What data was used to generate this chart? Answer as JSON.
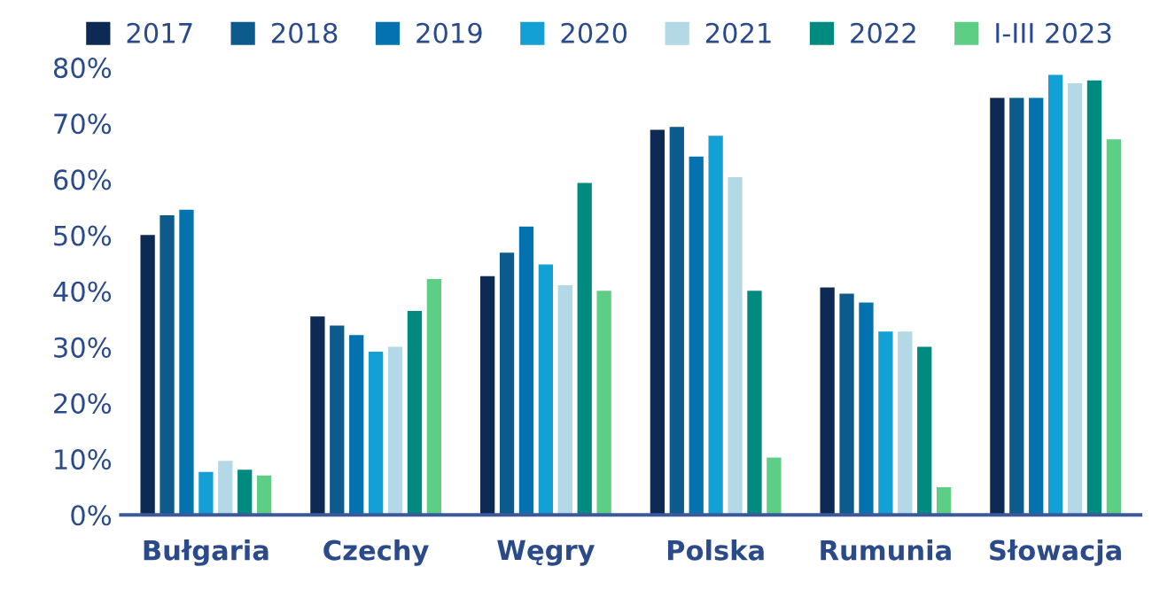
{
  "chart_data": {
    "type": "bar",
    "categories": [
      "Bułgaria",
      "Czechy",
      "Węgry",
      "Polska",
      "Rumunia",
      "Słowacja"
    ],
    "series": [
      {
        "name": "2017",
        "color": "#0c2a54",
        "values": [
          50.2,
          35.6,
          42.8,
          69.0,
          40.8,
          74.7
        ]
      },
      {
        "name": "2018",
        "color": "#0d5a8c",
        "values": [
          53.7,
          34.0,
          47.0,
          69.5,
          39.7,
          74.7
        ]
      },
      {
        "name": "2019",
        "color": "#0572b0",
        "values": [
          54.7,
          32.3,
          51.7,
          64.2,
          38.1,
          74.7
        ]
      },
      {
        "name": "2020",
        "color": "#13a0d4",
        "values": [
          7.8,
          29.3,
          44.9,
          67.9,
          32.9,
          78.8
        ]
      },
      {
        "name": "2021",
        "color": "#b3d8e6",
        "values": [
          9.8,
          30.2,
          41.2,
          60.5,
          32.9,
          77.3
        ]
      },
      {
        "name": "2022",
        "color": "#008a80",
        "values": [
          8.2,
          36.6,
          59.5,
          40.2,
          30.2,
          77.8
        ]
      },
      {
        "name": "I-III 2023",
        "color": "#5ccf85",
        "values": [
          7.2,
          42.3,
          40.2,
          10.4,
          5.1,
          67.3
        ]
      }
    ],
    "ylim": [
      0,
      80
    ],
    "yticks": [
      {
        "value": 0,
        "label": "0%"
      },
      {
        "value": 10,
        "label": "10%"
      },
      {
        "value": 20,
        "label": "20%"
      },
      {
        "value": 30,
        "label": "30%"
      },
      {
        "value": 40,
        "label": "40%"
      },
      {
        "value": 50,
        "label": "50%"
      },
      {
        "value": 60,
        "label": "60%"
      },
      {
        "value": 70,
        "label": "70%"
      },
      {
        "value": 80,
        "label": "80%"
      }
    ],
    "grid": false,
    "legend": "top"
  }
}
